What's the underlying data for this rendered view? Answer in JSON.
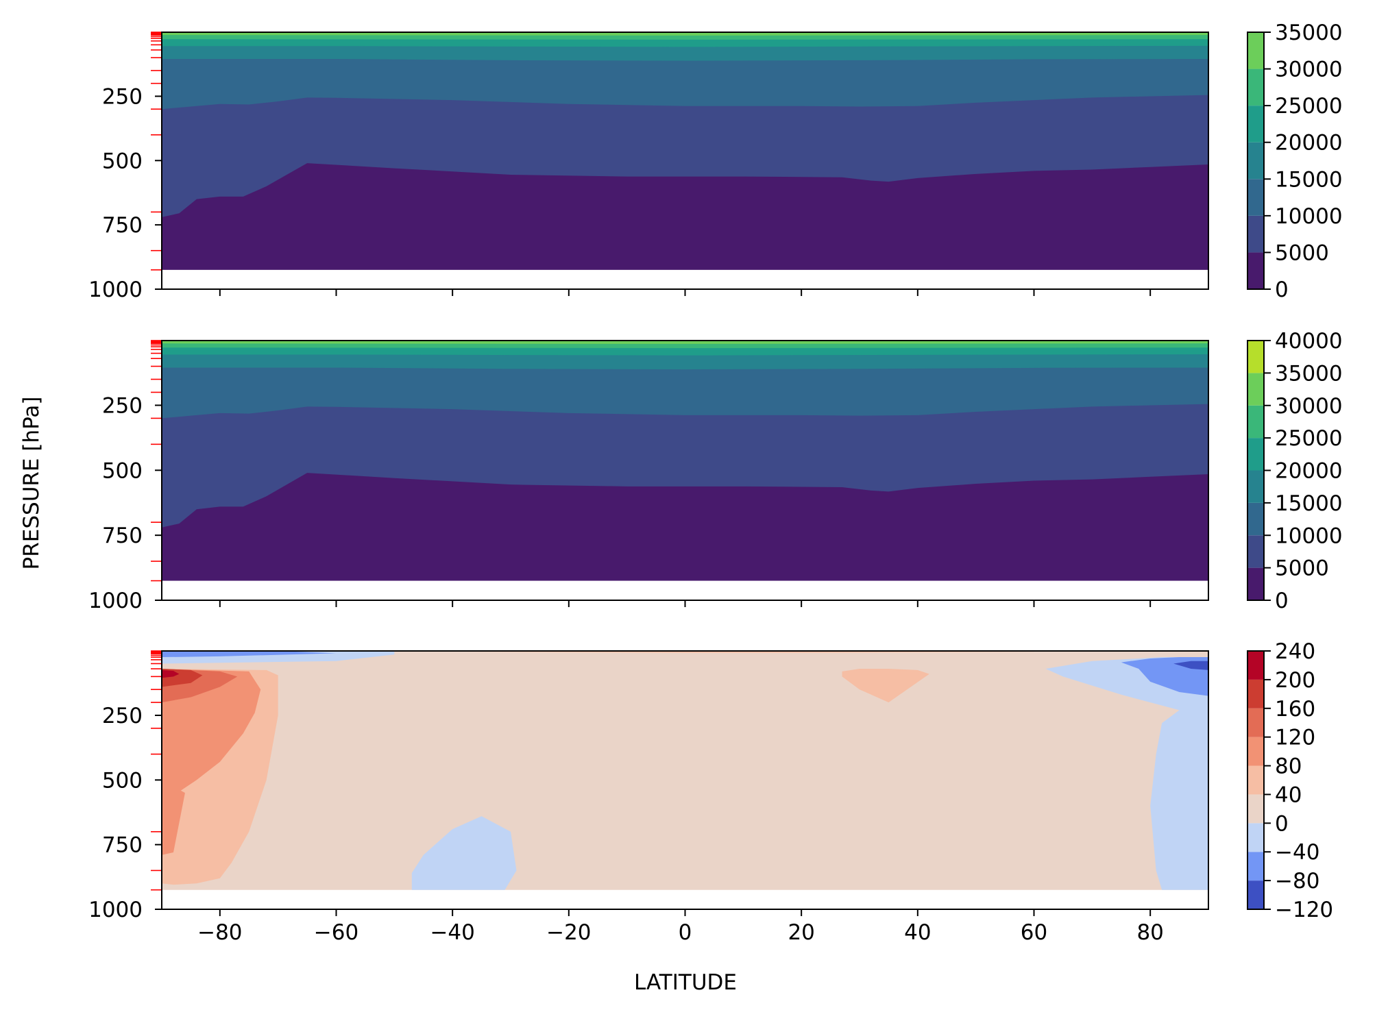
{
  "figure": {
    "ylabel": "PRESSURE [hPa]",
    "xlabel": "LATITUDE"
  },
  "chart_data": [
    {
      "type": "contour",
      "panel": "top",
      "xlim": [
        -90,
        90
      ],
      "ylim": [
        1000,
        1
      ],
      "y_inverted": true,
      "x_ticks": [
        -80,
        -60,
        -40,
        -20,
        0,
        20,
        40,
        60,
        80
      ],
      "x_ticklabels_visible": false,
      "y_ticks": [
        250,
        500,
        750,
        1000
      ],
      "y_ticklabels": [
        "250",
        "500",
        "750",
        "1000"
      ],
      "levels": [
        0,
        5000,
        10000,
        15000,
        20000,
        25000,
        30000,
        35000
      ],
      "colormap": "viridis",
      "colors": [
        "#481a6c",
        "#3e4a89",
        "#31688e",
        "#26838f",
        "#1f9d8a",
        "#3ab779",
        "#6cce5a",
        "#b6de2b"
      ],
      "colorbar_ticks": [
        0,
        5000,
        10000,
        15000,
        20000,
        25000,
        30000,
        35000
      ],
      "colorbar_ticklabels": [
        "0",
        "5000",
        "10000",
        "15000",
        "20000",
        "25000",
        "30000",
        "35000"
      ],
      "data_bottom_hpa": 925,
      "contours": [
        {
          "level": 5000,
          "lat": [
            -90,
            -87,
            -84,
            -80,
            -76,
            -72,
            -65,
            -50,
            -30,
            -10,
            10,
            27,
            32,
            35,
            40,
            50,
            60,
            70,
            80,
            90
          ],
          "p": [
            720,
            705,
            650,
            640,
            640,
            600,
            510,
            530,
            555,
            562,
            562,
            565,
            578,
            582,
            568,
            552,
            540,
            535,
            525,
            515
          ]
        },
        {
          "level": 10000,
          "lat": [
            -90,
            -85,
            -80,
            -75,
            -70,
            -65,
            -60,
            -40,
            -20,
            0,
            20,
            30,
            40,
            50,
            60,
            70,
            80,
            90
          ],
          "p": [
            300,
            290,
            280,
            282,
            270,
            255,
            256,
            265,
            280,
            288,
            288,
            290,
            288,
            275,
            265,
            255,
            250,
            245
          ]
        },
        {
          "level": 15000,
          "lat": [
            -90,
            -60,
            -30,
            0,
            30,
            60,
            90
          ],
          "p": [
            105,
            105,
            110,
            112,
            110,
            106,
            105
          ]
        },
        {
          "level": 20000,
          "lat": [
            -90,
            -60,
            0,
            60,
            90
          ],
          "p": [
            55,
            55,
            58,
            55,
            54
          ]
        },
        {
          "level": 25000,
          "lat": [
            -90,
            0,
            90
          ],
          "p": [
            28,
            30,
            28
          ]
        },
        {
          "level": 30000,
          "lat": [
            -90,
            0,
            90
          ],
          "p": [
            12,
            14,
            12
          ]
        }
      ]
    },
    {
      "type": "contour",
      "panel": "middle",
      "xlim": [
        -90,
        90
      ],
      "ylim": [
        1000,
        1
      ],
      "y_inverted": true,
      "x_ticks": [
        -80,
        -60,
        -40,
        -20,
        0,
        20,
        40,
        60,
        80
      ],
      "x_ticklabels_visible": false,
      "y_ticks": [
        250,
        500,
        750,
        1000
      ],
      "y_ticklabels": [
        "250",
        "500",
        "750",
        "1000"
      ],
      "levels": [
        0,
        5000,
        10000,
        15000,
        20000,
        25000,
        30000,
        35000,
        40000
      ],
      "colormap": "viridis",
      "colors": [
        "#481a6c",
        "#3e4a89",
        "#31688e",
        "#26838f",
        "#1f9d8a",
        "#3ab779",
        "#6cce5a",
        "#b6de2b",
        "#fde725"
      ],
      "colorbar_ticks": [
        0,
        5000,
        10000,
        15000,
        20000,
        25000,
        30000,
        35000,
        40000
      ],
      "colorbar_ticklabels": [
        "0",
        "5000",
        "10000",
        "15000",
        "20000",
        "25000",
        "30000",
        "35000",
        "40000"
      ],
      "data_bottom_hpa": 925,
      "contours": [
        {
          "level": 5000,
          "lat": [
            -90,
            -87,
            -84,
            -80,
            -76,
            -72,
            -65,
            -50,
            -30,
            -10,
            10,
            27,
            32,
            35,
            40,
            50,
            60,
            70,
            80,
            90
          ],
          "p": [
            720,
            705,
            650,
            640,
            640,
            600,
            510,
            530,
            555,
            562,
            562,
            565,
            578,
            582,
            568,
            552,
            540,
            535,
            525,
            515
          ]
        },
        {
          "level": 10000,
          "lat": [
            -90,
            -85,
            -80,
            -75,
            -70,
            -65,
            -60,
            -40,
            -20,
            0,
            20,
            30,
            40,
            50,
            60,
            70,
            80,
            90
          ],
          "p": [
            300,
            290,
            280,
            282,
            270,
            255,
            256,
            265,
            280,
            288,
            288,
            290,
            288,
            275,
            265,
            255,
            250,
            245
          ]
        },
        {
          "level": 15000,
          "lat": [
            -90,
            -60,
            -30,
            0,
            30,
            60,
            90
          ],
          "p": [
            105,
            105,
            110,
            112,
            110,
            106,
            105
          ]
        },
        {
          "level": 20000,
          "lat": [
            -90,
            -60,
            0,
            60,
            90
          ],
          "p": [
            55,
            55,
            58,
            55,
            54
          ]
        },
        {
          "level": 25000,
          "lat": [
            -90,
            0,
            90
          ],
          "p": [
            28,
            30,
            28
          ]
        },
        {
          "level": 30000,
          "lat": [
            -90,
            0,
            90
          ],
          "p": [
            12,
            14,
            12
          ]
        }
      ]
    },
    {
      "type": "contour",
      "panel": "bottom",
      "xlim": [
        -90,
        90
      ],
      "ylim": [
        1000,
        1
      ],
      "y_inverted": true,
      "x_ticks": [
        -80,
        -60,
        -40,
        -20,
        0,
        20,
        40,
        60,
        80
      ],
      "x_ticklabels": [
        "−80",
        "−60",
        "−40",
        "−20",
        "0",
        "20",
        "40",
        "60",
        "80"
      ],
      "x_ticklabels_visible": true,
      "y_ticks": [
        250,
        500,
        750,
        1000
      ],
      "y_ticklabels": [
        "250",
        "500",
        "750",
        "1000"
      ],
      "levels": [
        -120,
        -80,
        -40,
        0,
        40,
        80,
        120,
        160,
        200,
        240
      ],
      "colormap": "coolwarm",
      "colors": [
        "#3d50c3",
        "#7396f5",
        "#c0d4f5",
        "#ead4c8",
        "#f6bea4",
        "#f29274",
        "#e36c55",
        "#cc3d31",
        "#b40426"
      ],
      "colorbar_ticks": [
        -120,
        -80,
        -40,
        0,
        40,
        80,
        120,
        160,
        200,
        240
      ],
      "colorbar_ticklabels": [
        "−120",
        "−80",
        "−40",
        "0",
        "40",
        "80",
        "120",
        "160",
        "200",
        "240"
      ],
      "data_bottom_hpa": 925,
      "regions": [
        {
          "range": [
            0,
            40
          ],
          "lat": [
            -90,
            -90,
            90,
            90
          ],
          "p": [
            1,
            925,
            925,
            1
          ]
        },
        {
          "range": [
            -40,
            0
          ],
          "lat": [
            -90,
            -70,
            -50,
            -50,
            -60,
            -90
          ],
          "p": [
            1,
            1,
            1,
            15,
            40,
            50
          ]
        },
        {
          "range": [
            -80,
            -40
          ],
          "lat": [
            -90,
            -70,
            -60,
            -80,
            -90
          ],
          "p": [
            1,
            1,
            10,
            22,
            25
          ]
        },
        {
          "range": [
            40,
            80
          ],
          "lat": [
            -50,
            -20,
            0,
            20,
            40,
            60,
            60,
            40,
            20,
            0,
            -20,
            -50
          ],
          "p": [
            1,
            1,
            1,
            1,
            1,
            1,
            4,
            6,
            8,
            8,
            6,
            2
          ]
        },
        {
          "range": [
            -40,
            0
          ],
          "lat": [
            -47,
            -45,
            -40,
            -35,
            -30,
            -29,
            -31,
            -40,
            -47
          ],
          "p": [
            860,
            790,
            690,
            640,
            700,
            850,
            925,
            925,
            925
          ]
        },
        {
          "range": [
            40,
            80
          ],
          "lat": [
            27,
            30,
            35,
            40,
            42,
            35,
            30,
            27
          ],
          "p": [
            80,
            70,
            70,
            75,
            90,
            200,
            150,
            100
          ]
        },
        {
          "range": [
            -40,
            0
          ],
          "lat": [
            62,
            70,
            78,
            82,
            86,
            90,
            90,
            82,
            81,
            80,
            81,
            82,
            85,
            75,
            65
          ],
          "p": [
            70,
            40,
            30,
            25,
            25,
            25,
            925,
            925,
            850,
            600,
            400,
            280,
            230,
            170,
            100
          ]
        },
        {
          "range": [
            -80,
            -40
          ],
          "lat": [
            75,
            80,
            85,
            90,
            90,
            85,
            80,
            78
          ],
          "p": [
            45,
            30,
            25,
            25,
            175,
            160,
            120,
            70
          ]
        },
        {
          "range": [
            -120,
            -80
          ],
          "lat": [
            84,
            87,
            90,
            90,
            87
          ],
          "p": [
            50,
            40,
            40,
            75,
            70
          ]
        },
        {
          "range": [
            40,
            80
          ],
          "lat": [
            -90,
            -72,
            -70,
            -70,
            -72,
            -75,
            -78,
            -80,
            -84,
            -88,
            -90
          ],
          "p": [
            70,
            75,
            95,
            250,
            500,
            700,
            820,
            880,
            900,
            905,
            900
          ]
        },
        {
          "range": [
            80,
            120
          ],
          "lat": [
            -90,
            -75,
            -73,
            -74,
            -76,
            -80,
            -84,
            -88,
            -90
          ],
          "p": [
            70,
            80,
            150,
            240,
            320,
            430,
            500,
            560,
            600
          ]
        },
        {
          "range": [
            80,
            120
          ],
          "lat": [
            -90,
            -86,
            -88,
            -90
          ],
          "p": [
            500,
            550,
            780,
            790
          ]
        },
        {
          "range": [
            120,
            160
          ],
          "lat": [
            -90,
            -80,
            -77,
            -80,
            -85,
            -90
          ],
          "p": [
            70,
            80,
            100,
            140,
            180,
            200
          ]
        },
        {
          "range": [
            160,
            200
          ],
          "lat": [
            -90,
            -85,
            -83,
            -85,
            -90
          ],
          "p": [
            70,
            75,
            95,
            125,
            140
          ]
        },
        {
          "range": [
            200,
            240
          ],
          "lat": [
            -90,
            -88,
            -87,
            -88,
            -90
          ],
          "p": [
            75,
            78,
            90,
            100,
            105
          ]
        }
      ]
    }
  ]
}
